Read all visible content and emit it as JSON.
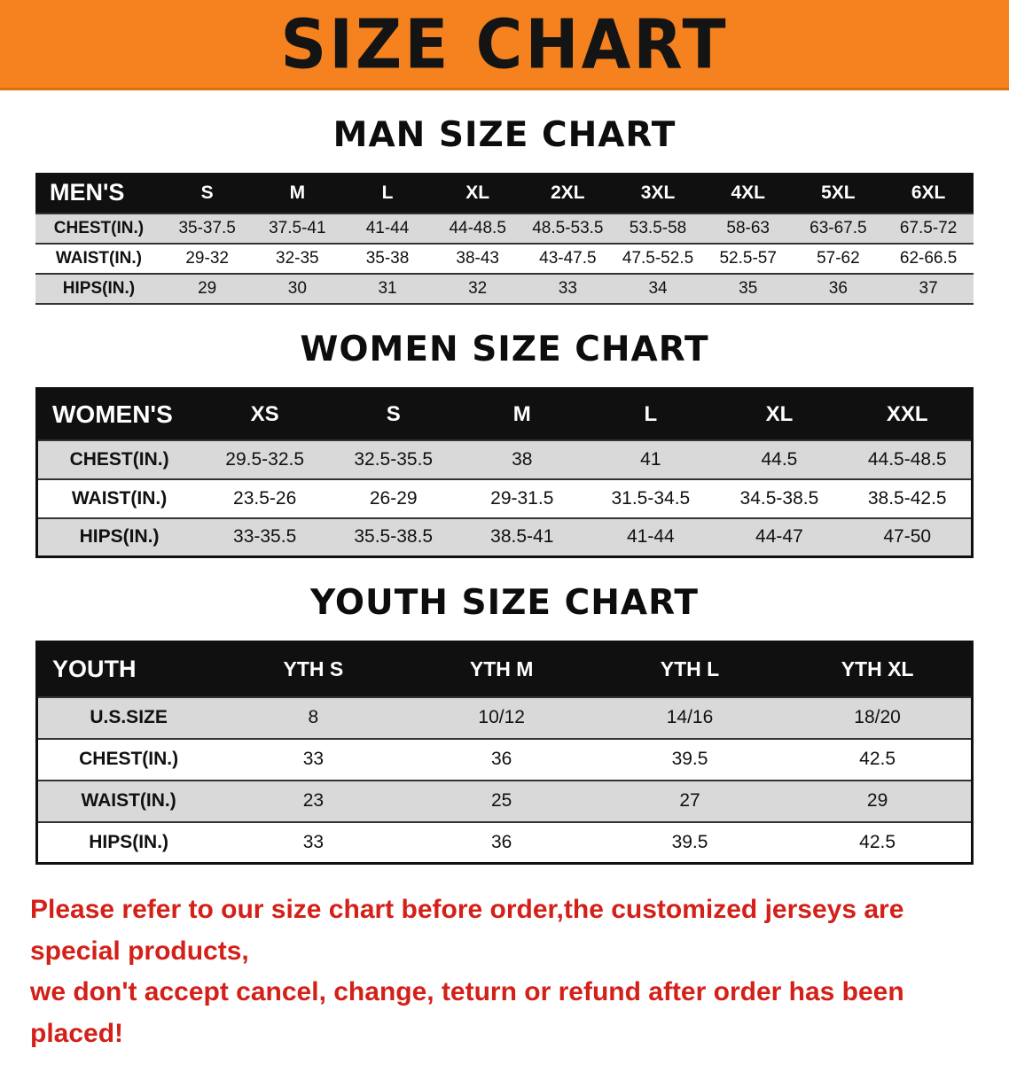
{
  "colors": {
    "orange": "#F5821E",
    "orange_dark": "#DD6F0C",
    "header_bg": "#101010",
    "row_gray": "#d9d9d9",
    "red": "#D32018"
  },
  "banner": {
    "title": "SIZE CHART"
  },
  "sections": [
    {
      "id": "men",
      "heading": "MAN SIZE CHART",
      "table": {
        "header": [
          "MEN'S",
          "S",
          "M",
          "L",
          "XL",
          "2XL",
          "3XL",
          "4XL",
          "5XL",
          "6XL"
        ],
        "rows": [
          [
            "CHEST(IN.)",
            "35-37.5",
            "37.5-41",
            "41-44",
            "44-48.5",
            "48.5-53.5",
            "53.5-58",
            "58-63",
            "63-67.5",
            "67.5-72"
          ],
          [
            "WAIST(IN.)",
            "29-32",
            "32-35",
            "35-38",
            "38-43",
            "43-47.5",
            "47.5-52.5",
            "52.5-57",
            "57-62",
            "62-66.5"
          ],
          [
            "HIPS(IN.)",
            "29",
            "30",
            "31",
            "32",
            "33",
            "34",
            "35",
            "36",
            "37"
          ]
        ]
      }
    },
    {
      "id": "women",
      "heading": "WOMEN SIZE CHART",
      "table": {
        "header": [
          "WOMEN'S",
          "XS",
          "S",
          "M",
          "L",
          "XL",
          "XXL"
        ],
        "rows": [
          [
            "CHEST(IN.)",
            "29.5-32.5",
            "32.5-35.5",
            "38",
            "41",
            "44.5",
            "44.5-48.5"
          ],
          [
            "WAIST(IN.)",
            "23.5-26",
            "26-29",
            "29-31.5",
            "31.5-34.5",
            "34.5-38.5",
            "38.5-42.5"
          ],
          [
            "HIPS(IN.)",
            "33-35.5",
            "35.5-38.5",
            "38.5-41",
            "41-44",
            "44-47",
            "47-50"
          ]
        ]
      }
    },
    {
      "id": "youth",
      "heading": "YOUTH SIZE CHART",
      "table": {
        "header": [
          "YOUTH",
          "YTH S",
          "YTH M",
          "YTH L",
          "YTH XL"
        ],
        "rows": [
          [
            "U.S.SIZE",
            "8",
            "10/12",
            "14/16",
            "18/20"
          ],
          [
            "CHEST(IN.)",
            "33",
            "36",
            "39.5",
            "42.5"
          ],
          [
            "WAIST(IN.)",
            "23",
            "25",
            "27",
            "29"
          ],
          [
            "HIPS(IN.)",
            "33",
            "36",
            "39.5",
            "42.5"
          ]
        ]
      }
    }
  ],
  "footer": {
    "lines": [
      "Please refer to our size chart before order,the customized jerseys are special products,",
      "we don't accept cancel, change, teturn or refund after order has been placed!"
    ]
  }
}
